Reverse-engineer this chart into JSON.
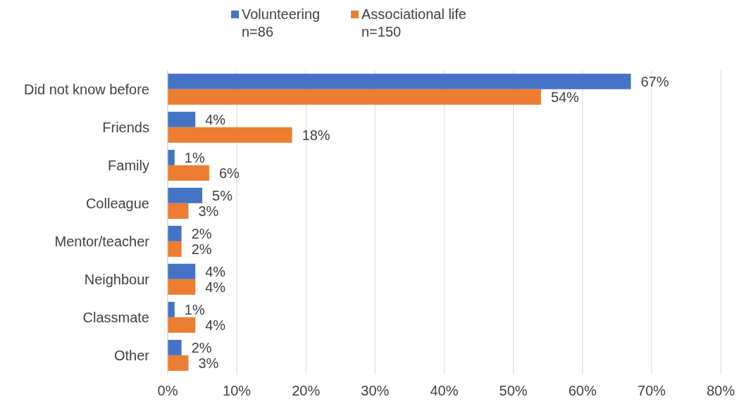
{
  "chart_data": {
    "type": "bar",
    "orientation": "horizontal",
    "categories": [
      "Did not know before",
      "Friends",
      "Family",
      "Colleague",
      "Mentor/teacher",
      "Neighbour",
      "Classmate",
      "Other"
    ],
    "series": [
      {
        "name": "Volunteering n=86",
        "color": "#4472c4",
        "values": [
          67,
          4,
          1,
          5,
          2,
          4,
          1,
          2
        ],
        "value_labels": [
          "67%",
          "4%",
          "1%",
          "5%",
          "2%",
          "4%",
          "1%",
          "2%"
        ]
      },
      {
        "name": "Associational life n=150",
        "color": "#ed7d31",
        "values": [
          54,
          18,
          6,
          3,
          2,
          4,
          4,
          3
        ],
        "value_labels": [
          "54%",
          "18%",
          "6%",
          "3%",
          "2%",
          "4%",
          "4%",
          "3%"
        ]
      }
    ],
    "xlim": [
      0,
      80
    ],
    "xticks": [
      {
        "value": 0,
        "label": "0%"
      },
      {
        "value": 10,
        "label": "10%"
      },
      {
        "value": 20,
        "label": "20%"
      },
      {
        "value": 30,
        "label": "30%"
      },
      {
        "value": 40,
        "label": "40%"
      },
      {
        "value": 50,
        "label": "50%"
      },
      {
        "value": 60,
        "label": "60%"
      },
      {
        "value": 70,
        "label": "70%"
      },
      {
        "value": 80,
        "label": "80%"
      }
    ],
    "grid": "x",
    "legend": "top"
  }
}
